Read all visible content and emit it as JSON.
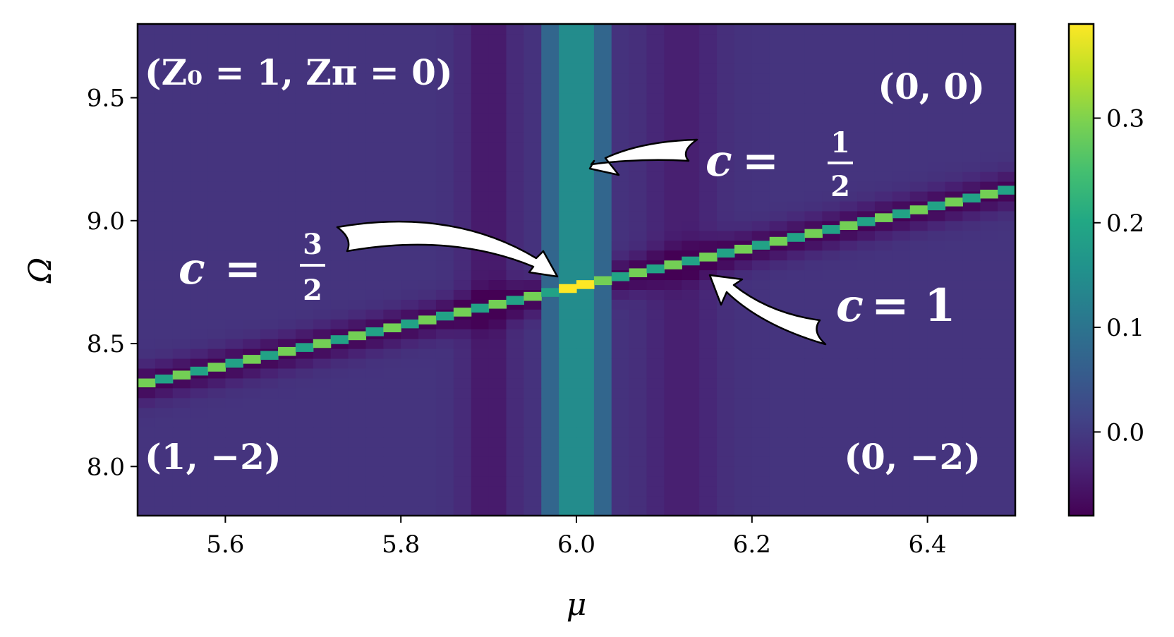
{
  "chart_data": {
    "type": "heatmap",
    "x": {
      "label": "μ",
      "range": [
        5.5,
        6.5
      ],
      "ticks": [
        5.6,
        5.8,
        6.0,
        6.2,
        6.4
      ],
      "tick_labels": [
        "5.6",
        "5.8",
        "6.0",
        "6.2",
        "6.4"
      ]
    },
    "y": {
      "label": "Ω",
      "range": [
        7.8,
        9.8
      ],
      "ticks": [
        8.0,
        8.5,
        9.0,
        9.5
      ],
      "tick_labels": [
        "8.0",
        "8.5",
        "9.0",
        "9.5"
      ]
    },
    "colorbar": {
      "colormap": "viridis",
      "range": [
        -0.08,
        0.39
      ],
      "ticks": [
        0.0,
        0.1,
        0.2,
        0.3
      ],
      "tick_labels": [
        "0.0",
        "0.1",
        "0.2",
        "0.3"
      ]
    },
    "grid": {
      "x_start": 5.5,
      "x_step": 0.02,
      "nx": 50,
      "y_start": 7.8,
      "y_step": 0.04,
      "ny": 50
    },
    "features": {
      "background_level": -0.01,
      "diagonal_line": {
        "mu": [
          5.5,
          6.5
        ],
        "omega": [
          8.33,
          9.13
        ],
        "peak_level": 0.29,
        "alternate_level": 0.19,
        "shadow_level": -0.07
      },
      "vertical_band": {
        "mu_center": 6.0,
        "core_half_width": 0.02,
        "core_level": 0.145,
        "edge_level": 0.075,
        "edge_half_width": 0.04
      },
      "crossing_peak": {
        "mu": 6.0,
        "omega": 8.72,
        "level": 0.39
      }
    },
    "region_labels": [
      {
        "text": "(Z₀ = 1, Zπ = 0)",
        "position": "top-left"
      },
      {
        "text": "(0, 0)",
        "position": "top-right"
      },
      {
        "text": "(1, −2)",
        "position": "bottom-left"
      },
      {
        "text": "(0, −2)",
        "position": "bottom-right"
      }
    ],
    "annotations": [
      {
        "c_prefix": "c",
        "equals": "=",
        "numerator": "1",
        "denominator": "2",
        "points_to": "vertical band"
      },
      {
        "c_prefix": "c",
        "equals": "=",
        "numerator": "3",
        "denominator": "2",
        "points_to": "crossing point"
      },
      {
        "c_prefix": "c",
        "equals": "=",
        "value": "1",
        "points_to": "diagonal line"
      }
    ]
  }
}
